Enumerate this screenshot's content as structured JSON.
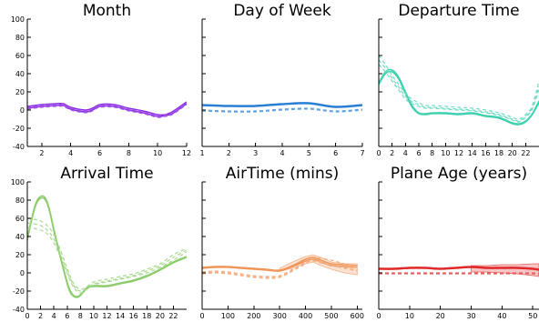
{
  "chart_data": [
    {
      "type": "line",
      "title": "Month",
      "xlim": [
        1,
        12
      ],
      "ylim": [
        -40,
        100
      ],
      "xticks": [
        2,
        4,
        6,
        8,
        10,
        12
      ],
      "yticks": [
        -40,
        -20,
        0,
        20,
        40,
        60,
        80,
        100
      ],
      "show_y_labels": true,
      "color": "#8a2be2",
      "series": [
        {
          "style": "solid",
          "x": [
            1,
            2,
            3,
            3.5,
            4,
            5,
            5.5,
            6,
            7,
            8,
            9,
            10,
            10.5,
            11,
            12
          ],
          "y": [
            4,
            6,
            7,
            7,
            3,
            0,
            2,
            6,
            6,
            2,
            -1,
            -5,
            -5,
            -2,
            9
          ]
        },
        {
          "style": "solid",
          "x": [
            1,
            2,
            3,
            3.5,
            4,
            5,
            5.5,
            6,
            7,
            8,
            9,
            10,
            10.5,
            11,
            12
          ],
          "y": [
            2,
            4,
            5,
            5,
            1,
            -2,
            0,
            4,
            4,
            0,
            -3,
            -7,
            -6,
            -4,
            7
          ]
        },
        {
          "style": "dashed",
          "x": [
            1,
            2,
            3,
            3.5,
            4,
            5,
            5.5,
            6,
            7,
            8,
            9,
            10,
            10.5,
            11,
            12
          ],
          "y": [
            1,
            3,
            4,
            4,
            0,
            -3,
            -1,
            3,
            3,
            -1,
            -4,
            -8,
            -7,
            -5,
            6
          ]
        },
        {
          "style": "dashed",
          "x": [
            1,
            2,
            3,
            3.5,
            4,
            5,
            5.5,
            6,
            7,
            8,
            9,
            10,
            10.5,
            11,
            12
          ],
          "y": [
            3,
            5,
            6,
            6,
            2,
            -1,
            1,
            5,
            5,
            1,
            -2,
            -6,
            -5,
            -3,
            8
          ]
        }
      ]
    },
    {
      "type": "line",
      "title": "Day of Week",
      "xlim": [
        1,
        7
      ],
      "ylim": [
        -40,
        100
      ],
      "xticks": [
        1,
        2,
        3,
        4,
        5,
        6,
        7
      ],
      "yticks": [
        -40,
        -20,
        0,
        20,
        40,
        60,
        80,
        100
      ],
      "show_y_labels": false,
      "color": "#2a7fd4",
      "series": [
        {
          "style": "solid",
          "x": [
            1,
            2,
            3,
            4,
            5,
            6,
            7
          ],
          "y": [
            6,
            5,
            5,
            7,
            8,
            4,
            6
          ]
        },
        {
          "style": "solid",
          "x": [
            1,
            2,
            3,
            4,
            5,
            6,
            7
          ],
          "y": [
            5,
            4,
            4,
            6,
            7,
            3,
            5
          ]
        },
        {
          "style": "dashed",
          "x": [
            1,
            2,
            3,
            4,
            5,
            6,
            7
          ],
          "y": [
            0,
            -1,
            -1,
            1,
            2,
            -1,
            1
          ]
        },
        {
          "style": "dashed",
          "x": [
            1,
            2,
            3,
            4,
            5,
            6,
            7
          ],
          "y": [
            -1,
            -2,
            -2,
            0,
            1,
            -2,
            0
          ]
        }
      ]
    },
    {
      "type": "line",
      "title": "Departure Time",
      "xlim": [
        0,
        24
      ],
      "ylim": [
        -40,
        100
      ],
      "xticks": [
        0,
        2,
        4,
        6,
        8,
        10,
        12,
        14,
        16,
        18,
        20,
        22
      ],
      "yticks": [
        -40,
        -20,
        0,
        20,
        40,
        60,
        80,
        100
      ],
      "show_y_labels": false,
      "color": "#40d0b0",
      "series": [
        {
          "style": "solid",
          "x": [
            0,
            1,
            2,
            3,
            4,
            5,
            6,
            7,
            8,
            10,
            12,
            14,
            16,
            18,
            20,
            21,
            22,
            23,
            24
          ],
          "y": [
            30,
            42,
            44,
            36,
            20,
            5,
            -3,
            -4,
            -3,
            -3,
            -4,
            -3,
            -6,
            -8,
            -14,
            -15,
            -12,
            -4,
            10
          ]
        },
        {
          "style": "solid",
          "x": [
            0,
            1,
            2,
            3,
            4,
            5,
            6,
            7,
            8,
            10,
            12,
            14,
            16,
            18,
            20,
            21,
            22,
            23,
            24
          ],
          "y": [
            28,
            40,
            42,
            34,
            18,
            3,
            -4,
            -5,
            -4,
            -4,
            -5,
            -4,
            -7,
            -9,
            -15,
            -16,
            -13,
            -5,
            8
          ]
        },
        {
          "style": "dashed",
          "x": [
            0,
            1,
            2,
            3,
            4,
            5,
            6,
            7,
            8,
            10,
            12,
            14,
            16,
            18,
            20,
            21,
            22,
            23,
            24
          ],
          "y": [
            60,
            50,
            38,
            28,
            18,
            12,
            8,
            5,
            5,
            4,
            3,
            2,
            0,
            -3,
            -8,
            -10,
            -5,
            5,
            32
          ]
        },
        {
          "style": "dashed",
          "x": [
            0,
            1,
            2,
            3,
            4,
            5,
            6,
            7,
            8,
            10,
            12,
            14,
            16,
            18,
            20,
            21,
            22,
            23,
            24
          ],
          "y": [
            55,
            46,
            35,
            25,
            15,
            9,
            6,
            3,
            3,
            2,
            1,
            0,
            -2,
            -5,
            -10,
            -12,
            -7,
            3,
            26
          ]
        },
        {
          "style": "dashed",
          "x": [
            0,
            1,
            2,
            3,
            4,
            5,
            6,
            7,
            8,
            10,
            12,
            14,
            16,
            18,
            20,
            21,
            22,
            23,
            24
          ],
          "y": [
            50,
            42,
            32,
            22,
            12,
            7,
            4,
            2,
            2,
            1,
            0,
            -1,
            -3,
            -6,
            -11,
            -13,
            -8,
            1,
            22
          ]
        }
      ]
    },
    {
      "type": "line",
      "title": "Arrival Time",
      "xlim": [
        0,
        24
      ],
      "ylim": [
        -40,
        100
      ],
      "xticks": [
        0,
        2,
        4,
        6,
        8,
        10,
        12,
        14,
        16,
        18,
        20,
        22
      ],
      "yticks": [
        -40,
        -20,
        0,
        20,
        40,
        60,
        80,
        100
      ],
      "show_y_labels": true,
      "color": "#8ccc6a",
      "series": [
        {
          "style": "solid",
          "x": [
            0,
            0.5,
            1,
            1.5,
            2,
            2.5,
            3,
            3.5,
            4,
            5,
            6,
            6.5,
            7,
            7.5,
            8,
            9,
            10,
            12,
            14,
            16,
            18,
            20,
            22,
            24
          ],
          "y": [
            38,
            55,
            70,
            80,
            84,
            84,
            78,
            65,
            48,
            18,
            -10,
            -20,
            -25,
            -26,
            -24,
            -16,
            -14,
            -14,
            -11,
            -8,
            -3,
            4,
            12,
            18
          ]
        },
        {
          "style": "solid",
          "x": [
            0,
            0.5,
            1,
            1.5,
            2,
            2.5,
            3,
            3.5,
            4,
            5,
            6,
            6.5,
            7,
            7.5,
            8,
            9,
            10,
            12,
            14,
            16,
            18,
            20,
            22,
            24
          ],
          "y": [
            36,
            53,
            68,
            78,
            82,
            82,
            76,
            63,
            46,
            16,
            -12,
            -22,
            -26,
            -27,
            -25,
            -17,
            -15,
            -15,
            -12,
            -9,
            -4,
            3,
            11,
            17
          ]
        },
        {
          "style": "dashed",
          "x": [
            0,
            1,
            2,
            3,
            4,
            5,
            6,
            7,
            8,
            9,
            10,
            12,
            14,
            16,
            18,
            20,
            22,
            24
          ],
          "y": [
            60,
            59,
            57,
            52,
            42,
            25,
            5,
            -12,
            -18,
            -15,
            -10,
            -7,
            -4,
            -1,
            4,
            10,
            20,
            27
          ]
        },
        {
          "style": "dashed",
          "x": [
            0,
            1,
            2,
            3,
            4,
            5,
            6,
            7,
            8,
            9,
            10,
            12,
            14,
            16,
            18,
            20,
            22,
            24
          ],
          "y": [
            55,
            54,
            52,
            47,
            37,
            20,
            2,
            -14,
            -20,
            -17,
            -12,
            -9,
            -6,
            -3,
            2,
            8,
            17,
            25
          ]
        },
        {
          "style": "dashed",
          "x": [
            0,
            1,
            2,
            3,
            4,
            5,
            6,
            7,
            8,
            9,
            10,
            12,
            14,
            16,
            18,
            20,
            22,
            24
          ],
          "y": [
            50,
            49,
            47,
            43,
            33,
            17,
            0,
            -16,
            -22,
            -18,
            -13,
            -10,
            -7,
            -4,
            0,
            6,
            14,
            23
          ]
        }
      ]
    },
    {
      "type": "line",
      "title": "AirTime (mins)",
      "xlim": [
        0,
        620
      ],
      "ylim": [
        -40,
        100
      ],
      "xticks": [
        0,
        100,
        200,
        300,
        400,
        500,
        600
      ],
      "yticks": [
        -40,
        -20,
        0,
        20,
        40,
        60,
        80,
        100
      ],
      "show_y_labels": false,
      "color": "#f0955a",
      "band": {
        "x": [
          300,
          350,
          400,
          430,
          460,
          500,
          550,
          600
        ],
        "lower": [
          2,
          5,
          10,
          12,
          8,
          4,
          0,
          -2
        ],
        "upper": [
          5,
          12,
          18,
          20,
          17,
          12,
          10,
          10
        ]
      },
      "series": [
        {
          "style": "solid",
          "x": [
            0,
            50,
            100,
            150,
            200,
            250,
            300,
            350,
            400,
            430,
            460,
            500,
            550,
            600
          ],
          "y": [
            6,
            7,
            7,
            6,
            5,
            4,
            3,
            8,
            15,
            17,
            14,
            10,
            9,
            8
          ]
        },
        {
          "style": "solid",
          "x": [
            0,
            50,
            100,
            150,
            200,
            250,
            300,
            350,
            400,
            430,
            460,
            500,
            550,
            600
          ],
          "y": [
            5,
            6,
            6,
            5,
            4,
            3,
            2,
            7,
            13,
            15,
            12,
            8,
            7,
            6
          ]
        },
        {
          "style": "dashed",
          "x": [
            0,
            50,
            100,
            150,
            200,
            250,
            300,
            350,
            400,
            430,
            460,
            500,
            550,
            600
          ],
          "y": [
            1,
            2,
            1,
            -1,
            -3,
            -4,
            -3,
            4,
            12,
            14,
            12,
            9,
            6,
            3
          ]
        },
        {
          "style": "dashed",
          "x": [
            0,
            50,
            100,
            150,
            200,
            250,
            300,
            350,
            400,
            430,
            460,
            500,
            550,
            600
          ],
          "y": [
            -1,
            0,
            -1,
            -3,
            -5,
            -6,
            -5,
            2,
            10,
            16,
            16,
            14,
            10,
            6
          ]
        },
        {
          "style": "dashed",
          "x": [
            0,
            50,
            100,
            150,
            200,
            250,
            300,
            350,
            400,
            430,
            460,
            500,
            550,
            600
          ],
          "y": [
            0,
            1,
            0,
            -2,
            -4,
            -5,
            -4,
            3,
            11,
            13,
            11,
            8,
            5,
            2
          ]
        }
      ]
    },
    {
      "type": "line",
      "title": "Plane Age (years)",
      "xlim": [
        0,
        52
      ],
      "ylim": [
        -40,
        100
      ],
      "xticks": [
        0,
        10,
        20,
        30,
        40,
        50
      ],
      "yticks": [
        -40,
        -20,
        0,
        20,
        40,
        60,
        80,
        100
      ],
      "show_y_labels": false,
      "color": "#e02828",
      "band": {
        "x": [
          30,
          35,
          40,
          45,
          50,
          52
        ],
        "lower": [
          1,
          1,
          0,
          -1,
          -3,
          -4
        ],
        "upper": [
          8,
          8,
          9,
          9,
          10,
          10
        ]
      },
      "series": [
        {
          "style": "solid",
          "x": [
            0,
            5,
            10,
            15,
            20,
            25,
            30,
            35,
            40,
            45,
            50,
            52
          ],
          "y": [
            5,
            5,
            6,
            6,
            5,
            6,
            7,
            6,
            6,
            6,
            5,
            4
          ]
        },
        {
          "style": "solid",
          "x": [
            0,
            5,
            10,
            15,
            20,
            25,
            30,
            35,
            40,
            45,
            50,
            52
          ],
          "y": [
            4,
            4,
            5,
            5,
            4,
            5,
            6,
            5,
            5,
            5,
            4,
            3
          ]
        },
        {
          "style": "dashed",
          "x": [
            0,
            5,
            10,
            15,
            20,
            25,
            30,
            35,
            40,
            45,
            50,
            52
          ],
          "y": [
            0,
            0,
            0,
            0,
            0,
            0,
            0,
            0,
            0,
            0,
            0,
            -1
          ]
        },
        {
          "style": "dashed",
          "x": [
            0,
            5,
            10,
            15,
            20,
            25,
            30,
            35,
            40,
            45,
            50,
            52
          ],
          "y": [
            -1,
            -1,
            -1,
            -1,
            -1,
            -1,
            -1,
            -1,
            -1,
            -1,
            -1,
            -2
          ]
        }
      ]
    }
  ]
}
